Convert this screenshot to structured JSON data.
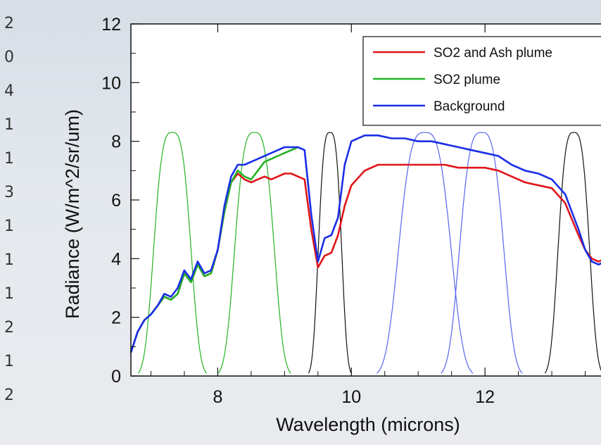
{
  "chart_data": {
    "type": "line",
    "title": "",
    "xlabel": "Wavelength (microns)",
    "ylabel": "Radiance (W/m^2/sr/um)",
    "xlim": [
      6.7,
      13.8
    ],
    "ylim": [
      0,
      12
    ],
    "x_ticks": [
      8,
      10,
      12
    ],
    "y_ticks": [
      0,
      2,
      4,
      6,
      8,
      10,
      12
    ],
    "legend_position": "top-right",
    "grid": false,
    "series": [
      {
        "name": "SO2 and Ash plume",
        "color": "#e0151a",
        "x": [
          6.7,
          6.8,
          6.9,
          7.0,
          7.1,
          7.2,
          7.3,
          7.4,
          7.5,
          7.6,
          7.7,
          7.8,
          7.9,
          8.0,
          8.1,
          8.2,
          8.3,
          8.4,
          8.5,
          8.6,
          8.7,
          8.8,
          8.9,
          9.0,
          9.1,
          9.2,
          9.3,
          9.4,
          9.5,
          9.6,
          9.7,
          9.8,
          9.9,
          10.0,
          10.2,
          10.4,
          10.6,
          10.8,
          11.0,
          11.2,
          11.4,
          11.6,
          11.8,
          12.0,
          12.2,
          12.4,
          12.6,
          12.8,
          13.0,
          13.2,
          13.4,
          13.5,
          13.6,
          13.7,
          13.8
        ],
        "y": [
          0.8,
          1.5,
          1.9,
          2.1,
          2.4,
          2.7,
          2.6,
          2.8,
          3.5,
          3.2,
          3.8,
          3.4,
          3.5,
          4.3,
          5.6,
          6.6,
          6.9,
          6.7,
          6.6,
          6.7,
          6.8,
          6.7,
          6.8,
          6.9,
          6.9,
          6.8,
          6.7,
          5.0,
          3.7,
          4.1,
          4.2,
          4.8,
          5.8,
          6.5,
          7.0,
          7.2,
          7.2,
          7.2,
          7.2,
          7.2,
          7.2,
          7.1,
          7.1,
          7.1,
          7.0,
          6.8,
          6.6,
          6.5,
          6.4,
          5.9,
          4.8,
          4.3,
          4.0,
          3.9,
          4.0
        ]
      },
      {
        "name": "SO2 plume",
        "color": "#22b322",
        "x": [
          6.7,
          6.8,
          6.9,
          7.0,
          7.1,
          7.2,
          7.3,
          7.4,
          7.5,
          7.6,
          7.7,
          7.8,
          7.9,
          8.0,
          8.1,
          8.2,
          8.3,
          8.4,
          8.5,
          8.6,
          8.7,
          8.8,
          8.9,
          9.0,
          9.1,
          9.2
        ],
        "y": [
          0.8,
          1.5,
          1.9,
          2.1,
          2.4,
          2.7,
          2.6,
          2.8,
          3.5,
          3.2,
          3.8,
          3.4,
          3.5,
          4.3,
          5.6,
          6.6,
          7.0,
          6.8,
          6.7,
          7.0,
          7.3,
          7.4,
          7.5,
          7.6,
          7.7,
          7.8
        ]
      },
      {
        "name": "Background",
        "color": "#1a2ee6",
        "x": [
          6.7,
          6.8,
          6.9,
          7.0,
          7.1,
          7.2,
          7.3,
          7.4,
          7.5,
          7.6,
          7.7,
          7.8,
          7.9,
          8.0,
          8.1,
          8.2,
          8.3,
          8.4,
          8.5,
          8.6,
          8.7,
          8.8,
          8.9,
          9.0,
          9.1,
          9.2,
          9.3,
          9.4,
          9.5,
          9.6,
          9.7,
          9.8,
          9.9,
          10.0,
          10.2,
          10.4,
          10.6,
          10.8,
          11.0,
          11.2,
          11.4,
          11.6,
          11.8,
          12.0,
          12.2,
          12.4,
          12.6,
          12.8,
          13.0,
          13.2,
          13.4,
          13.5,
          13.6,
          13.7,
          13.8
        ],
        "y": [
          0.8,
          1.5,
          1.9,
          2.1,
          2.4,
          2.8,
          2.7,
          3.0,
          3.6,
          3.3,
          3.9,
          3.5,
          3.6,
          4.3,
          5.8,
          6.8,
          7.2,
          7.2,
          7.3,
          7.4,
          7.5,
          7.6,
          7.7,
          7.8,
          7.8,
          7.8,
          7.7,
          5.5,
          3.9,
          4.7,
          4.8,
          5.4,
          7.2,
          8.0,
          8.2,
          8.2,
          8.1,
          8.1,
          8.0,
          8.0,
          7.9,
          7.8,
          7.7,
          7.6,
          7.5,
          7.2,
          7.0,
          6.9,
          6.7,
          6.2,
          5.0,
          4.3,
          3.9,
          3.8,
          3.9
        ]
      }
    ],
    "response_curves": [
      {
        "color": "#22b322",
        "center": 7.32,
        "peak": 8.3,
        "half_width": 0.32
      },
      {
        "color": "#22b322",
        "center": 8.55,
        "peak": 8.3,
        "half_width": 0.34
      },
      {
        "color": "#111111",
        "center": 9.68,
        "peak": 8.3,
        "half_width": 0.2
      },
      {
        "color": "#5566ee",
        "center": 11.1,
        "peak": 8.3,
        "half_width": 0.45
      },
      {
        "color": "#5566ee",
        "center": 11.95,
        "peak": 8.3,
        "half_width": 0.38
      },
      {
        "color": "#111111",
        "center": 13.33,
        "peak": 8.3,
        "half_width": 0.27
      }
    ]
  },
  "left_edge_glyphs": [
    "2",
    "0",
    "4",
    "1",
    "1",
    "3",
    "1",
    "1",
    "1",
    "2",
    "1",
    "2"
  ]
}
